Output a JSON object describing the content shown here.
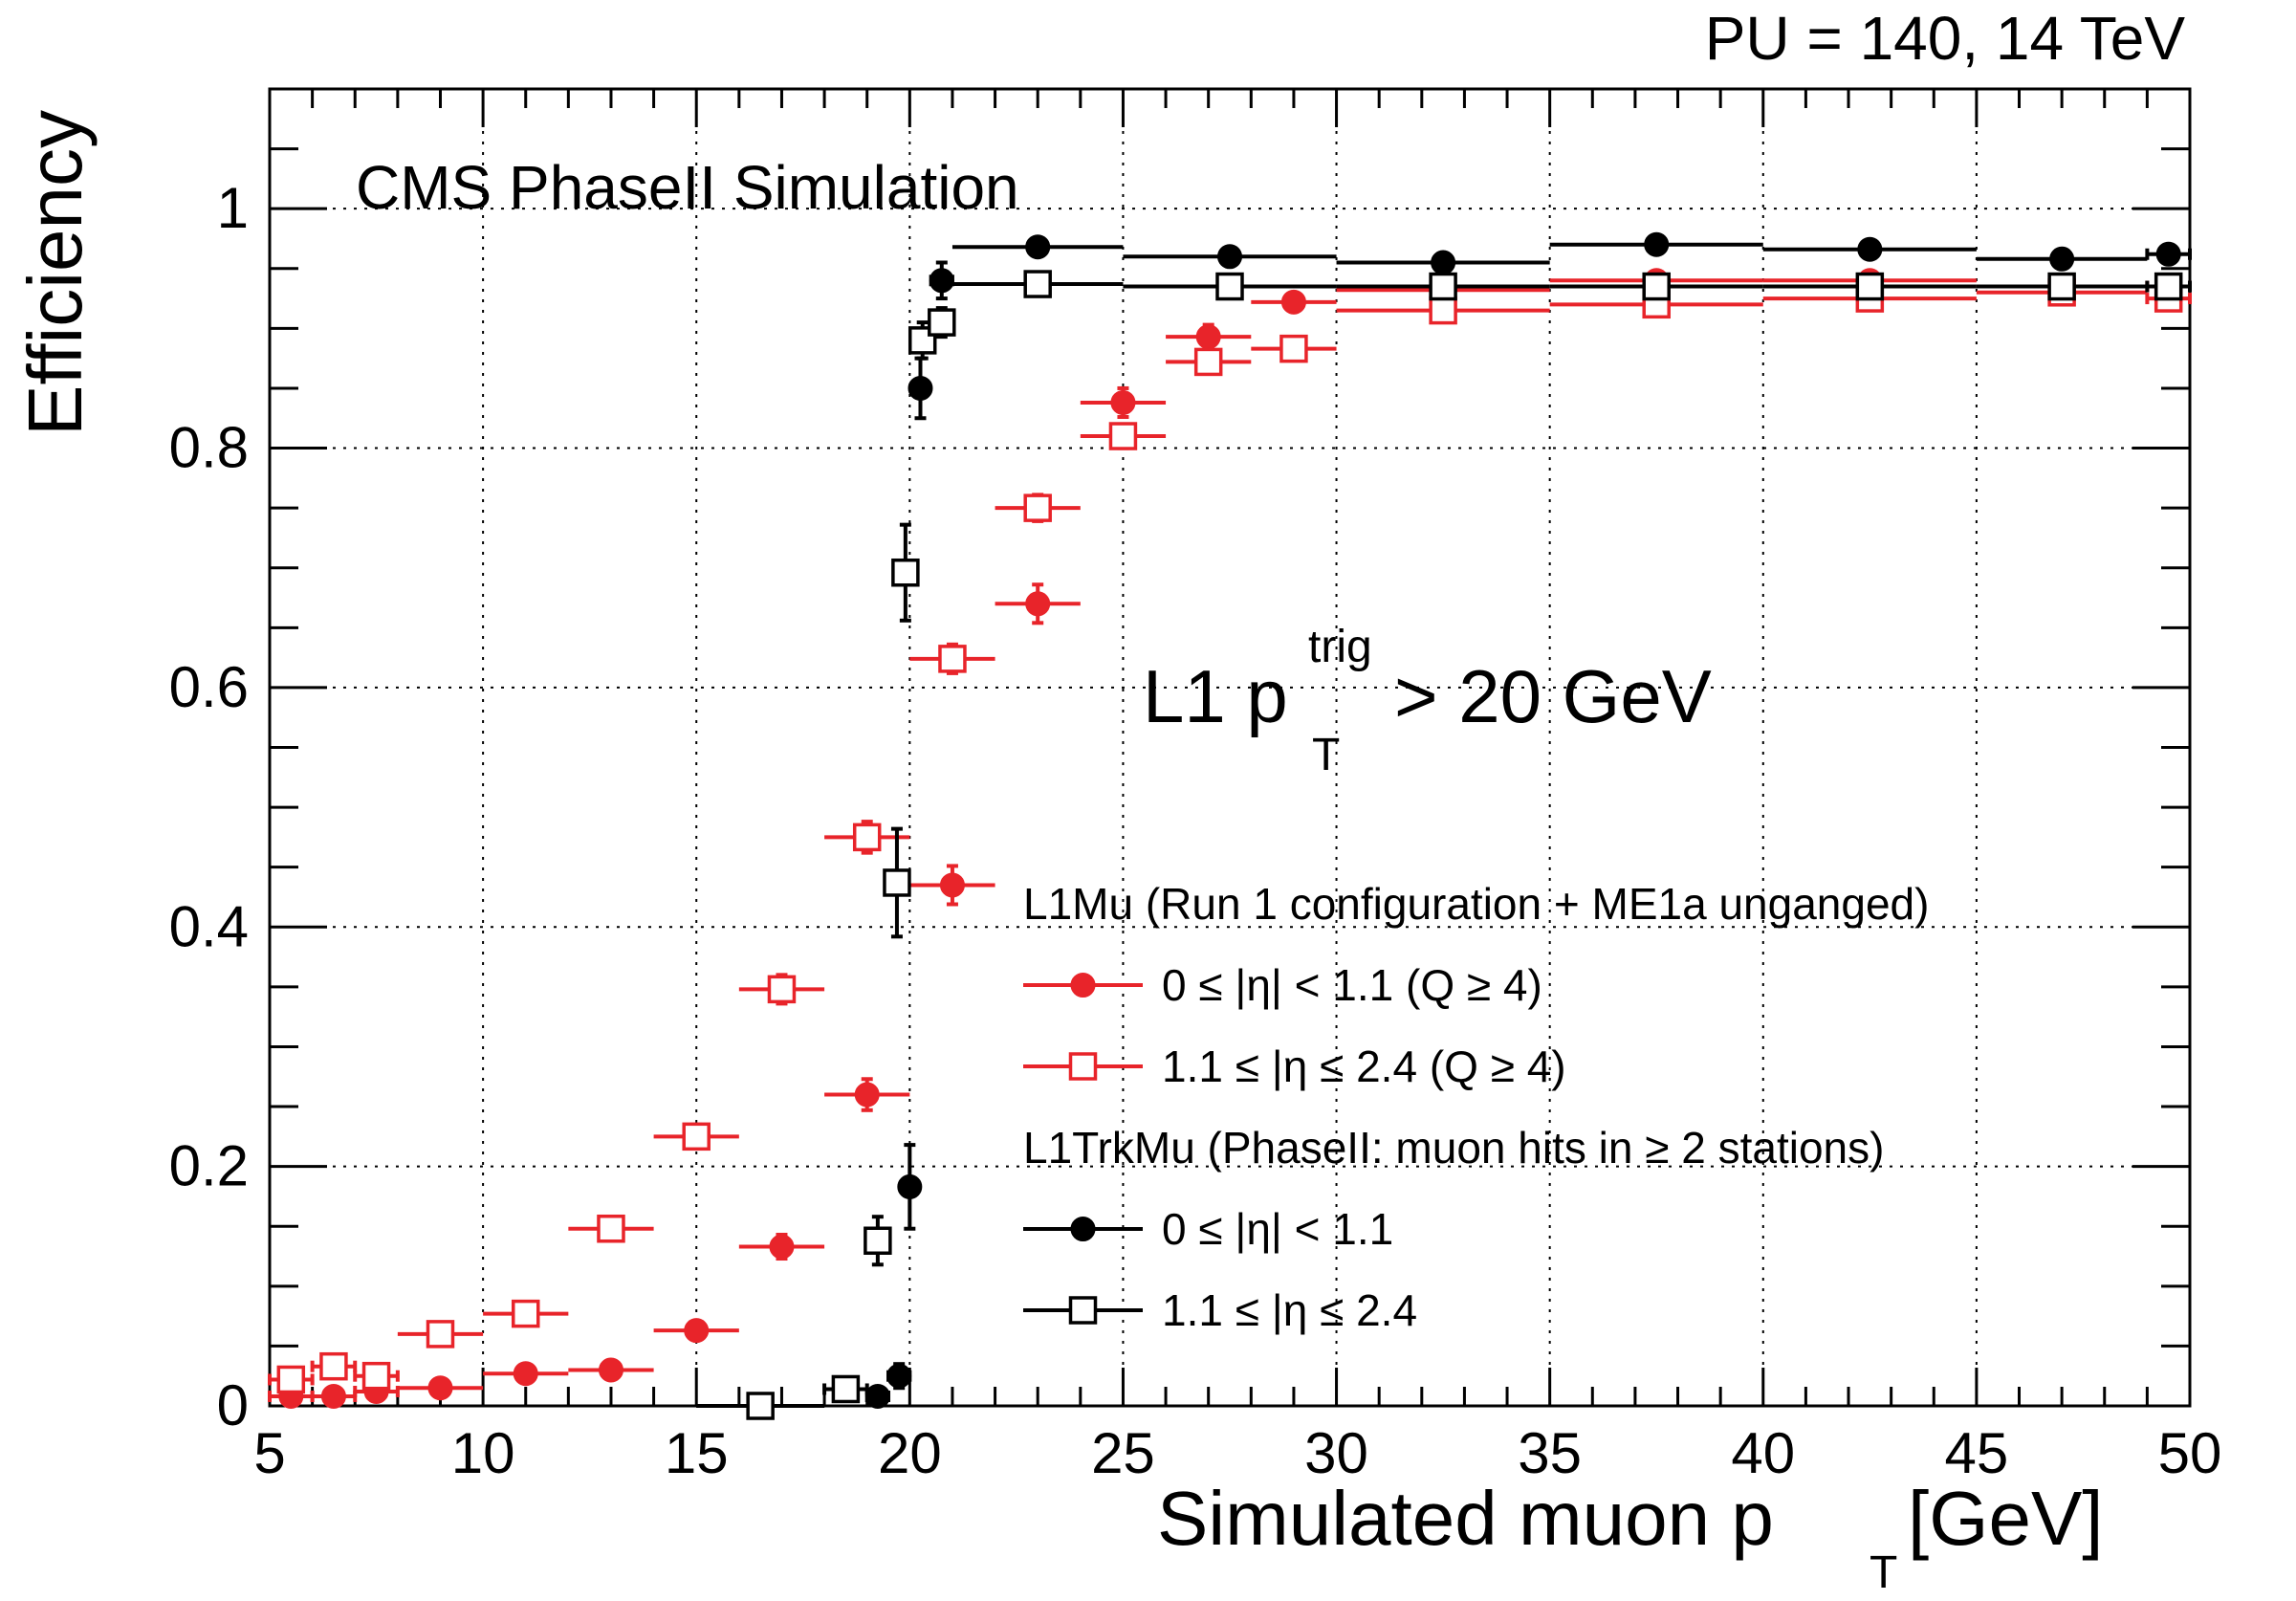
{
  "chart_data": {
    "type": "scatter",
    "header": "PU = 140, 14 TeV",
    "title": "CMS PhaseII Simulation",
    "annotation": {
      "prefix": "L1 p",
      "sub": "T",
      "sup": "trig",
      "suffix": " > 20 GeV"
    },
    "xlabel": {
      "text": "Simulated muon p",
      "sub": "T",
      "suffix": "  [GeV]"
    },
    "ylabel": "Efficiency",
    "xlim": [
      5,
      50
    ],
    "ylim": [
      0,
      1.1
    ],
    "xticks": [
      5,
      10,
      15,
      20,
      25,
      30,
      35,
      40,
      45,
      50
    ],
    "xtick_labels": [
      "5",
      "10",
      "15",
      "20",
      "25",
      "30",
      "35",
      "40",
      "45",
      "50"
    ],
    "yticks": [
      0,
      0.2,
      0.4,
      0.6,
      0.8,
      1.0
    ],
    "ytick_labels": [
      "0",
      "0.2",
      "0.4",
      "0.6",
      "0.8",
      "1"
    ],
    "grid": true,
    "legend": {
      "position": "bottom-right",
      "headers": [
        "L1Mu (Run 1 configuration + ME1a unganged)",
        "L1TrkMu (PhaseII: muon hits in ≥ 2 stations)"
      ]
    },
    "series": [
      {
        "name": "L1Mu 0 ≤ |η| < 1.1 (Q ≥ 4)",
        "label": "0  ≤  |η| < 1.1  (Q ≥ 4)",
        "group": 0,
        "color": "#e8242a",
        "marker": "filled-circle",
        "points": [
          {
            "x": 5.5,
            "xlo": 5.0,
            "xhi": 6.0,
            "y": 0.008,
            "ey": 0.003
          },
          {
            "x": 6.5,
            "xlo": 6.0,
            "xhi": 7.0,
            "y": 0.008,
            "ey": 0.003
          },
          {
            "x": 7.5,
            "xlo": 7.0,
            "xhi": 8.0,
            "y": 0.012,
            "ey": 0.003
          },
          {
            "x": 9.0,
            "xlo": 8.0,
            "xhi": 10.0,
            "y": 0.015,
            "ey": 0.003
          },
          {
            "x": 11.0,
            "xlo": 10.0,
            "xhi": 12.0,
            "y": 0.027,
            "ey": 0.004
          },
          {
            "x": 13.0,
            "xlo": 12.0,
            "xhi": 14.0,
            "y": 0.03,
            "ey": 0.004
          },
          {
            "x": 15.0,
            "xlo": 14.0,
            "xhi": 16.0,
            "y": 0.063,
            "ey": 0.006
          },
          {
            "x": 17.0,
            "xlo": 16.0,
            "xhi": 18.0,
            "y": 0.133,
            "ey": 0.01
          },
          {
            "x": 19.0,
            "xlo": 18.0,
            "xhi": 20.0,
            "y": 0.26,
            "ey": 0.013
          },
          {
            "x": 21.0,
            "xlo": 20.0,
            "xhi": 22.0,
            "y": 0.435,
            "ey": 0.016
          },
          {
            "x": 23.0,
            "xlo": 22.0,
            "xhi": 24.0,
            "y": 0.67,
            "ey": 0.016
          },
          {
            "x": 25.0,
            "xlo": 24.0,
            "xhi": 26.0,
            "y": 0.838,
            "ey": 0.012
          },
          {
            "x": 27.0,
            "xlo": 26.0,
            "xhi": 28.0,
            "y": 0.893,
            "ey": 0.01
          },
          {
            "x": 29.0,
            "xlo": 28.0,
            "xhi": 30.0,
            "y": 0.922,
            "ey": 0.007
          },
          {
            "x": 32.5,
            "xlo": 30.0,
            "xhi": 35.0,
            "y": 0.932,
            "ey": 0.005
          },
          {
            "x": 37.5,
            "xlo": 35.0,
            "xhi": 40.0,
            "y": 0.94,
            "ey": 0.005
          },
          {
            "x": 42.5,
            "xlo": 40.0,
            "xhi": 45.0,
            "y": 0.94,
            "ey": 0.005
          },
          {
            "x": 47.0,
            "xlo": 45.0,
            "xhi": 49.0,
            "y": 0.935,
            "ey": 0.005
          },
          {
            "x": 49.5,
            "xlo": 49.0,
            "xhi": 50.0,
            "y": 0.935,
            "ey": 0.005
          }
        ]
      },
      {
        "name": "L1Mu 1.1 ≤ |η| ≤ 2.4 (Q ≥ 4)",
        "label": "1.1 ≤ |η  ≤ 2.4 (Q ≥ 4)",
        "group": 0,
        "color": "#e8242a",
        "marker": "open-square",
        "points": [
          {
            "x": 5.5,
            "xlo": 5.0,
            "xhi": 6.0,
            "y": 0.022,
            "ey": 0.004
          },
          {
            "x": 6.5,
            "xlo": 6.0,
            "xhi": 7.0,
            "y": 0.033,
            "ey": 0.004
          },
          {
            "x": 7.5,
            "xlo": 7.0,
            "xhi": 8.0,
            "y": 0.025,
            "ey": 0.004
          },
          {
            "x": 9.0,
            "xlo": 8.0,
            "xhi": 10.0,
            "y": 0.06,
            "ey": 0.005
          },
          {
            "x": 11.0,
            "xlo": 10.0,
            "xhi": 12.0,
            "y": 0.077,
            "ey": 0.006
          },
          {
            "x": 13.0,
            "xlo": 12.0,
            "xhi": 14.0,
            "y": 0.148,
            "ey": 0.008
          },
          {
            "x": 15.0,
            "xlo": 14.0,
            "xhi": 16.0,
            "y": 0.225,
            "ey": 0.01
          },
          {
            "x": 17.0,
            "xlo": 16.0,
            "xhi": 18.0,
            "y": 0.348,
            "ey": 0.012
          },
          {
            "x": 19.0,
            "xlo": 18.0,
            "xhi": 20.0,
            "y": 0.475,
            "ey": 0.013
          },
          {
            "x": 21.0,
            "xlo": 20.0,
            "xhi": 22.0,
            "y": 0.624,
            "ey": 0.012
          },
          {
            "x": 23.0,
            "xlo": 22.0,
            "xhi": 24.0,
            "y": 0.75,
            "ey": 0.011
          },
          {
            "x": 25.0,
            "xlo": 24.0,
            "xhi": 26.0,
            "y": 0.81,
            "ey": 0.01
          },
          {
            "x": 27.0,
            "xlo": 26.0,
            "xhi": 28.0,
            "y": 0.872,
            "ey": 0.009
          },
          {
            "x": 29.0,
            "xlo": 28.0,
            "xhi": 30.0,
            "y": 0.883,
            "ey": 0.008
          },
          {
            "x": 32.5,
            "xlo": 30.0,
            "xhi": 35.0,
            "y": 0.915,
            "ey": 0.006
          },
          {
            "x": 37.5,
            "xlo": 35.0,
            "xhi": 40.0,
            "y": 0.92,
            "ey": 0.006
          },
          {
            "x": 42.5,
            "xlo": 40.0,
            "xhi": 45.0,
            "y": 0.925,
            "ey": 0.006
          },
          {
            "x": 47.0,
            "xlo": 45.0,
            "xhi": 49.0,
            "y": 0.93,
            "ey": 0.006
          },
          {
            "x": 49.5,
            "xlo": 49.0,
            "xhi": 50.0,
            "y": 0.925,
            "ey": 0.006
          }
        ]
      },
      {
        "name": "L1TrkMu 0 ≤ |η| < 1.1",
        "label": "0   ≤  |η| < 1.1",
        "group": 1,
        "color": "#000000",
        "marker": "filled-circle",
        "points": [
          {
            "x": 16.5,
            "xlo": 15.0,
            "xhi": 18.0,
            "y": 0.0,
            "ey": 0.002
          },
          {
            "x": 19.25,
            "xlo": 19.0,
            "xhi": 19.5,
            "y": 0.008,
            "ey": 0.005
          },
          {
            "x": 19.75,
            "xlo": 19.5,
            "xhi": 20.0,
            "y": 0.025,
            "ey": 0.01
          },
          {
            "x": 20.0,
            "xlo": 19.9,
            "xhi": 20.1,
            "y": 0.183,
            "ey": 0.035
          },
          {
            "x": 20.25,
            "xlo": 20.1,
            "xhi": 20.4,
            "y": 0.85,
            "ey": 0.025
          },
          {
            "x": 20.75,
            "xlo": 20.5,
            "xhi": 21.0,
            "y": 0.94,
            "ey": 0.015
          },
          {
            "x": 23.0,
            "xlo": 21.0,
            "xhi": 25.0,
            "y": 0.968,
            "ey": 0.005
          },
          {
            "x": 27.5,
            "xlo": 25.0,
            "xhi": 30.0,
            "y": 0.96,
            "ey": 0.005
          },
          {
            "x": 32.5,
            "xlo": 30.0,
            "xhi": 35.0,
            "y": 0.955,
            "ey": 0.005
          },
          {
            "x": 37.5,
            "xlo": 35.0,
            "xhi": 40.0,
            "y": 0.97,
            "ey": 0.005
          },
          {
            "x": 42.5,
            "xlo": 40.0,
            "xhi": 45.0,
            "y": 0.966,
            "ey": 0.005
          },
          {
            "x": 47.0,
            "xlo": 45.0,
            "xhi": 49.0,
            "y": 0.958,
            "ey": 0.005
          },
          {
            "x": 49.5,
            "xlo": 49.0,
            "xhi": 50.0,
            "y": 0.962,
            "ey": 0.005
          }
        ]
      },
      {
        "name": "L1TrkMu 1.1 ≤ |η| ≤ 2.4",
        "label": "1.1 ≤ |η  ≤ 2.4",
        "group": 1,
        "color": "#000000",
        "marker": "open-square",
        "points": [
          {
            "x": 16.5,
            "xlo": 15.0,
            "xhi": 18.0,
            "y": 0.0,
            "ey": 0.002
          },
          {
            "x": 18.5,
            "xlo": 18.0,
            "xhi": 19.0,
            "y": 0.014,
            "ey": 0.006
          },
          {
            "x": 19.25,
            "xlo": 19.0,
            "xhi": 19.5,
            "y": 0.138,
            "ey": 0.02
          },
          {
            "x": 19.7,
            "xlo": 19.5,
            "xhi": 19.9,
            "y": 0.437,
            "ey": 0.045
          },
          {
            "x": 19.9,
            "xlo": 19.8,
            "xhi": 20.0,
            "y": 0.696,
            "ey": 0.04
          },
          {
            "x": 20.3,
            "xlo": 20.1,
            "xhi": 20.5,
            "y": 0.89,
            "ey": 0.015
          },
          {
            "x": 20.75,
            "xlo": 20.5,
            "xhi": 21.0,
            "y": 0.905,
            "ey": 0.012
          },
          {
            "x": 23.0,
            "xlo": 21.0,
            "xhi": 25.0,
            "y": 0.937,
            "ey": 0.005
          },
          {
            "x": 27.5,
            "xlo": 25.0,
            "xhi": 30.0,
            "y": 0.935,
            "ey": 0.005
          },
          {
            "x": 32.5,
            "xlo": 30.0,
            "xhi": 35.0,
            "y": 0.935,
            "ey": 0.005
          },
          {
            "x": 37.5,
            "xlo": 35.0,
            "xhi": 40.0,
            "y": 0.935,
            "ey": 0.005
          },
          {
            "x": 42.5,
            "xlo": 40.0,
            "xhi": 45.0,
            "y": 0.935,
            "ey": 0.005
          },
          {
            "x": 47.0,
            "xlo": 45.0,
            "xhi": 49.0,
            "y": 0.935,
            "ey": 0.005
          },
          {
            "x": 49.5,
            "xlo": 49.0,
            "xhi": 50.0,
            "y": 0.935,
            "ey": 0.005
          }
        ]
      }
    ]
  }
}
